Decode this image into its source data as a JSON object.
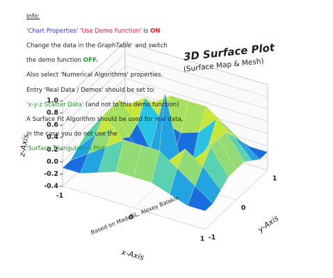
{
  "info": {
    "heading": "Info:",
    "lines": [
      [
        "'Chart Properties'",
        " ",
        "'Use Demo Function'",
        " is ",
        "ON"
      ],
      [
        "Change the data in the ",
        "GraphTable",
        "  and switch"
      ],
      [
        "the demo function ",
        "OFF."
      ],
      [
        "Also select 'Numerical Algorithms' properties."
      ],
      [
        "Entry 'Real Data / Demos' should be set to:"
      ],
      [
        "'x-y-z Scatter Data'",
        " (and not to this demo function)"
      ],
      [
        "A Surface Fit Algorithm should be used for real data,"
      ],
      [
        "in the case you do not use the"
      ],
      [
        "'Surface Triangulation Plot'"
      ]
    ]
  },
  "chart_data": {
    "type": "surface3d",
    "title": "3D Surface Plot",
    "subtitle": "(Surface Map & Mesh)",
    "x_label": "x-Axis",
    "y_label": "y-Axis",
    "z_label": "z-Axis",
    "watermark": "Based on MadeGL, Alexey Balakin",
    "x": [
      -1,
      -0.75,
      -0.5,
      -0.25,
      0,
      0.25,
      0.5,
      0.75,
      1
    ],
    "y": [
      -1,
      -0.75,
      -0.5,
      -0.25,
      0,
      0.25,
      0.5,
      0.75,
      1
    ],
    "z": [
      [
        -0.1,
        -0.1,
        0.0,
        0.1,
        0.1,
        0.1,
        0.0,
        -0.1,
        -0.1
      ],
      [
        -0.1,
        0.1,
        0.3,
        0.5,
        0.5,
        0.5,
        0.3,
        0.1,
        -0.1
      ],
      [
        0.0,
        0.3,
        0.5,
        0.2,
        0.1,
        0.2,
        0.5,
        0.3,
        0.0
      ],
      [
        0.1,
        0.5,
        0.2,
        -0.3,
        -0.2,
        -0.3,
        0.2,
        0.5,
        0.1
      ],
      [
        0.1,
        0.5,
        0.1,
        -0.2,
        1.0,
        -0.2,
        0.1,
        0.5,
        0.1
      ],
      [
        0.1,
        0.5,
        0.2,
        -0.3,
        -0.2,
        -0.3,
        0.2,
        0.5,
        0.1
      ],
      [
        0.0,
        0.3,
        0.5,
        0.2,
        0.1,
        0.2,
        0.5,
        0.3,
        0.0
      ],
      [
        -0.1,
        0.1,
        0.3,
        0.5,
        0.5,
        0.5,
        0.3,
        0.1,
        -0.1
      ],
      [
        -0.1,
        -0.1,
        0.0,
        0.1,
        0.1,
        0.1,
        0.0,
        -0.1,
        -0.1
      ]
    ],
    "xlim": [
      -1,
      1
    ],
    "ylim": [
      -1,
      1
    ],
    "zlim": [
      -0.4,
      1
    ],
    "xticks": [
      -1,
      0,
      1
    ],
    "yticks": [
      -1,
      0,
      1
    ],
    "zticks": [
      {
        "value": 1,
        "label": "1.0"
      },
      0.8,
      0.6,
      0.4,
      0.2,
      {
        "value": 0,
        "label": "0.0"
      },
      -0.2,
      -0.4
    ],
    "grid": true
  }
}
